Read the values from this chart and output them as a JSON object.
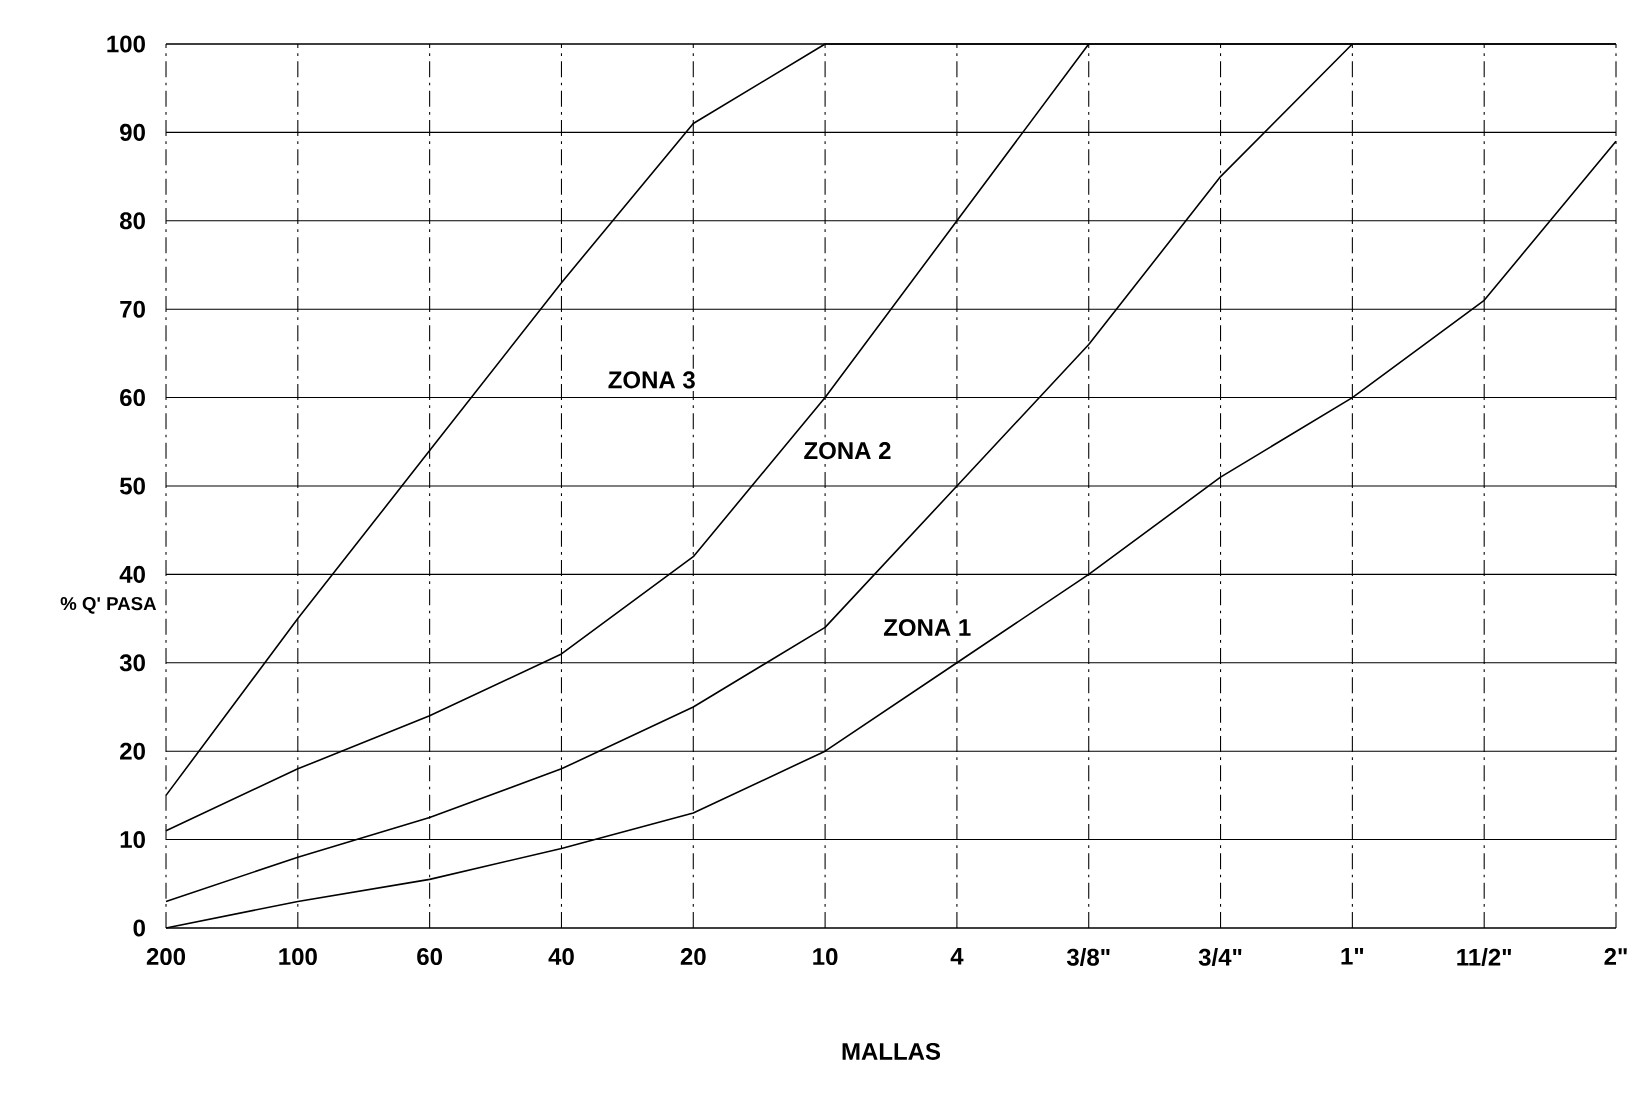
{
  "chart_data": {
    "type": "line",
    "xlabel": "MALLAS",
    "ylabel": "% Q' PASA",
    "categories": [
      "200",
      "100",
      "60",
      "40",
      "20",
      "10",
      "4",
      "3/8\"",
      "3/4\"",
      "1\"",
      "11/2\"",
      "2\""
    ],
    "series": [
      {
        "color": "#000000",
        "values": [
          15,
          35,
          54,
          73,
          91,
          100,
          100,
          100,
          100,
          100,
          100,
          100
        ]
      },
      {
        "color": "#000000",
        "values": [
          11,
          18,
          24,
          31,
          42,
          60,
          80,
          100,
          null,
          null,
          null,
          null
        ]
      },
      {
        "color": "#000000",
        "values": [
          3,
          8,
          12.5,
          18,
          25,
          34,
          50,
          66,
          85,
          100,
          null,
          null
        ]
      },
      {
        "color": "#000000",
        "values": [
          0,
          3,
          5.5,
          9,
          13,
          20,
          30,
          40,
          51,
          60,
          71,
          89
        ]
      }
    ],
    "annotations": [
      "ZONA 3",
      "ZONA 2",
      "ZONA 1"
    ],
    "grid": true,
    "marker": "none",
    "line_style": "solid",
    "ylim": [
      0,
      100
    ],
    "yticks": [
      0,
      10,
      20,
      30,
      40,
      50,
      60,
      70,
      80,
      90,
      100
    ]
  }
}
